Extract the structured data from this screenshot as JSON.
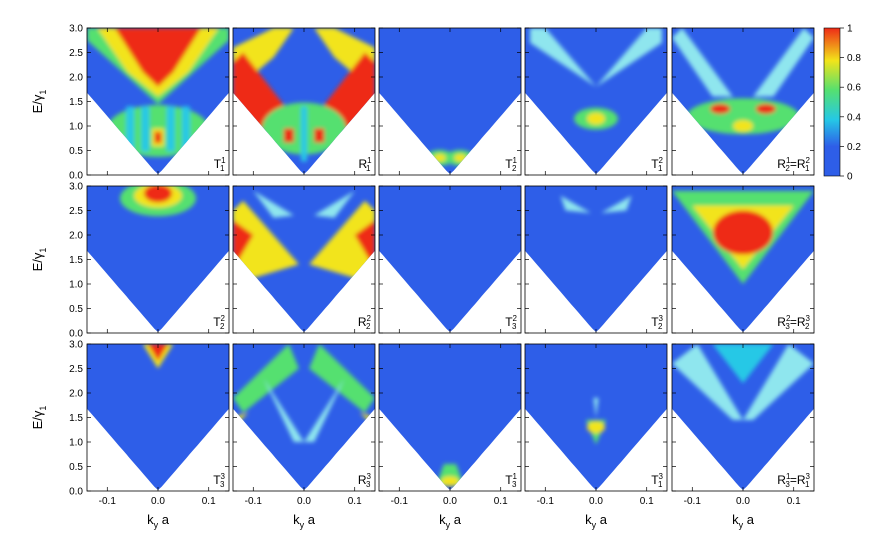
{
  "chart_data": {
    "type": "heatmap",
    "description_grid": "3 x 5 panels of transmission/reflection probabilities vs k_y a and E/gamma_1",
    "xlabel": "k",
    "xlabel_sub": "y",
    "xlabel_tail": " a",
    "ylabel": "E/γ",
    "ylabel_sub": "1",
    "xlim": [
      -0.14,
      0.14
    ],
    "ylim": [
      0.0,
      3.0
    ],
    "xticks": [
      "-0.1",
      "0.0",
      "0.1"
    ],
    "xtick_values": [
      -0.1,
      0.0,
      0.1
    ],
    "yticks": [
      "0.0",
      "0.5",
      "1.0",
      "1.5",
      "2.0",
      "2.5",
      "3.0"
    ],
    "ytick_values": [
      0.0,
      0.5,
      1.0,
      1.5,
      2.0,
      2.5,
      3.0
    ],
    "colorbar": {
      "range": [
        0,
        1
      ],
      "ticks": [
        "0",
        "0.2",
        "0.4",
        "0.6",
        "0.8",
        "1"
      ],
      "tick_values": [
        0,
        0.2,
        0.4,
        0.6,
        0.8,
        1.0
      ],
      "colors": [
        "#2e5ee8",
        "#25c8e6",
        "#55e070",
        "#f2e41a",
        "#ee2b18"
      ]
    },
    "panels": [
      {
        "row": 0,
        "col": 0,
        "label": "T",
        "sup": "1",
        "sub": "1",
        "id": "T11"
      },
      {
        "row": 0,
        "col": 1,
        "label": "R",
        "sup": "1",
        "sub": "1",
        "id": "R11"
      },
      {
        "row": 0,
        "col": 2,
        "label": "T",
        "sup": "1",
        "sub": "2",
        "id": "T12"
      },
      {
        "row": 0,
        "col": 3,
        "label": "T",
        "sup": "2",
        "sub": "1",
        "id": "T21"
      },
      {
        "row": 0,
        "col": 4,
        "label": "R",
        "sup": "1",
        "sub": "2",
        "label2": "R",
        "sup2": "2",
        "sub2": "1",
        "id": "R12"
      },
      {
        "row": 1,
        "col": 0,
        "label": "T",
        "sup": "2",
        "sub": "2",
        "id": "T22"
      },
      {
        "row": 1,
        "col": 1,
        "label": "R",
        "sup": "2",
        "sub": "2",
        "id": "R22"
      },
      {
        "row": 1,
        "col": 2,
        "label": "T",
        "sup": "2",
        "sub": "3",
        "id": "T23"
      },
      {
        "row": 1,
        "col": 3,
        "label": "T",
        "sup": "3",
        "sub": "2",
        "id": "T32"
      },
      {
        "row": 1,
        "col": 4,
        "label": "R",
        "sup": "2",
        "sub": "3",
        "label2": "R",
        "sup2": "3",
        "sub2": "2",
        "id": "R23"
      },
      {
        "row": 2,
        "col": 0,
        "label": "T",
        "sup": "3",
        "sub": "3",
        "id": "T33"
      },
      {
        "row": 2,
        "col": 1,
        "label": "R",
        "sup": "3",
        "sub": "3",
        "id": "R33"
      },
      {
        "row": 2,
        "col": 2,
        "label": "T",
        "sup": "1",
        "sub": "3",
        "id": "T13"
      },
      {
        "row": 2,
        "col": 3,
        "label": "T",
        "sup": "3",
        "sub": "1",
        "id": "T31"
      },
      {
        "row": 2,
        "col": 4,
        "label": "R",
        "sup": "1",
        "sub": "3",
        "label2": "R",
        "sup2": "3",
        "sub2": "1",
        "id": "R13"
      }
    ]
  }
}
